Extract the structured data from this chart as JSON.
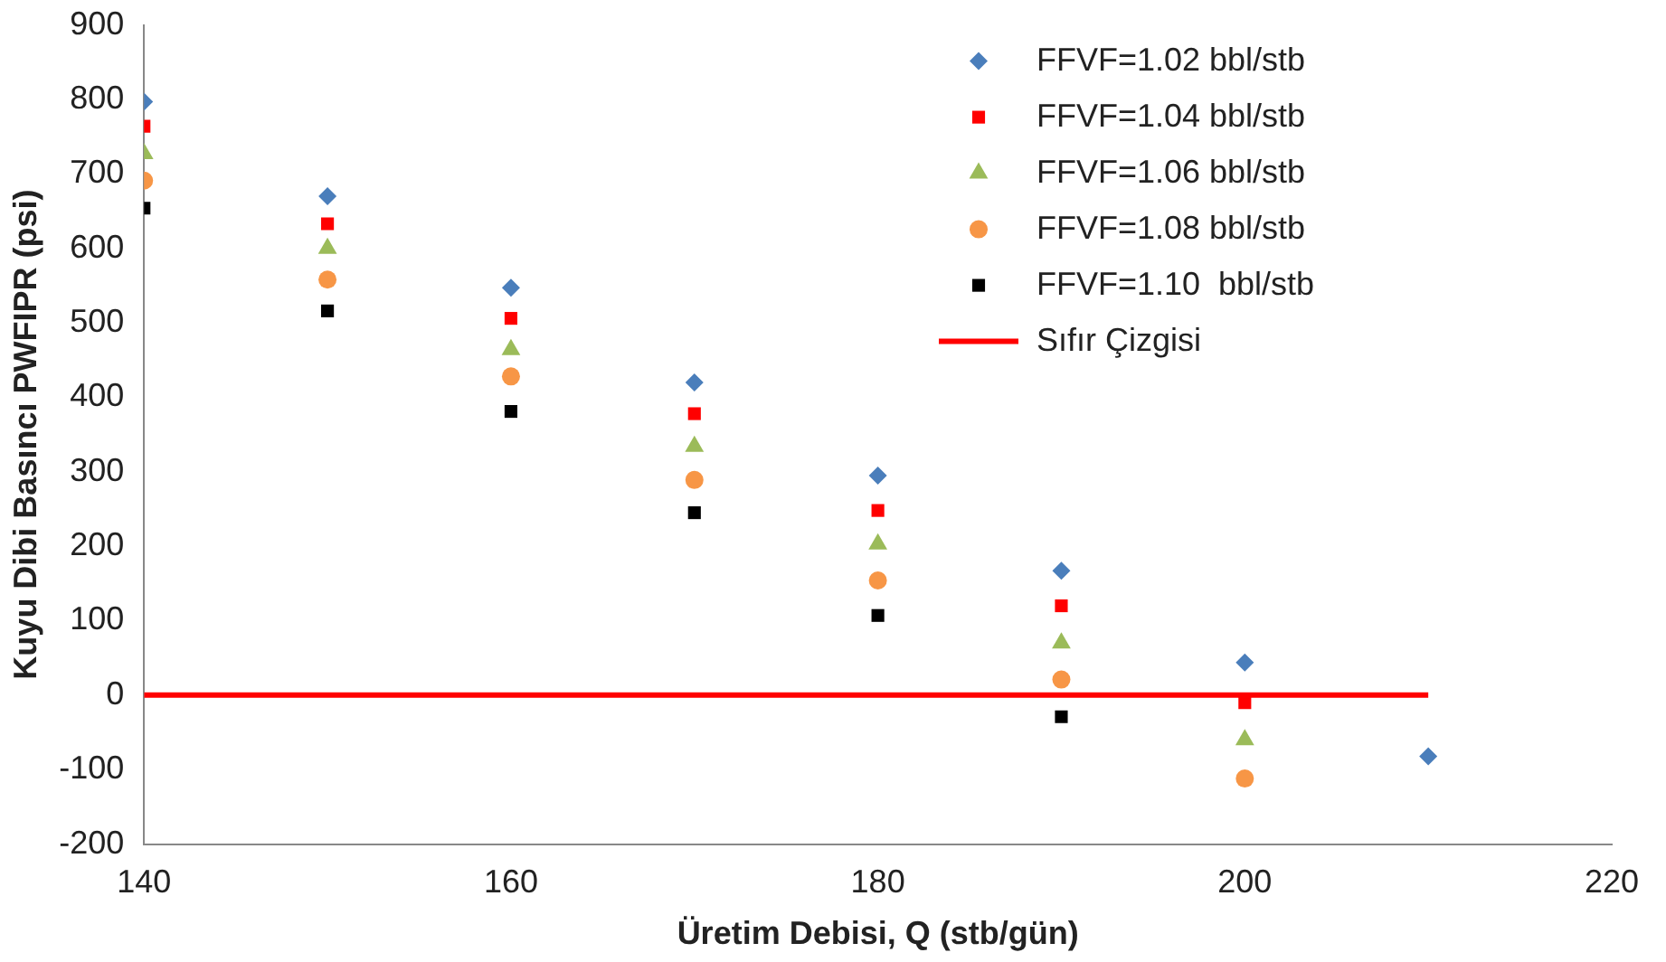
{
  "chart_data": {
    "type": "scatter",
    "xlabel": "Üretim Debisi, Q (stb/gün)",
    "ylabel": "Kuyu Dibi Basıncı PWFIPR (psi)",
    "x": [
      140,
      150,
      160,
      170,
      180,
      190,
      200,
      210
    ],
    "xlim": [
      140,
      220
    ],
    "xticks": [
      140,
      160,
      180,
      200,
      220
    ],
    "ylim": [
      -200,
      900
    ],
    "yticks": [
      -200,
      -100,
      0,
      100,
      200,
      300,
      400,
      500,
      600,
      700,
      800,
      900
    ],
    "grid": false,
    "legend": "top right",
    "series": [
      {
        "name": "FFVF=1.02 bbl/stb",
        "color": "#4a7ebb",
        "marker": "diamond",
        "values": [
          797,
          670,
          547,
          420,
          295,
          167,
          44,
          -82
        ]
      },
      {
        "name": "FFVF=1.04 bbl/stb",
        "color": "#ff0000",
        "marker": "square",
        "values": [
          764,
          633,
          506,
          378,
          248,
          120,
          -10,
          null
        ]
      },
      {
        "name": "FFVF=1.06 bbl/stb",
        "color": "#9bbb59",
        "marker": "triangle",
        "values": [
          727,
          600,
          464,
          334,
          203,
          70,
          -60,
          null
        ]
      },
      {
        "name": "FFVF=1.08 bbl/stb",
        "color": "#f79646",
        "marker": "circle",
        "values": [
          691,
          558,
          428,
          289,
          154,
          21,
          -112,
          null
        ]
      },
      {
        "name": "FFVF=1.10  bbl/stb",
        "color": "#000000",
        "marker": "square",
        "values": [
          654,
          516,
          381,
          245,
          107,
          -29,
          null,
          null
        ]
      },
      {
        "name": "Sıfır Çizgisi",
        "type": "line",
        "color": "#ff0000",
        "marker": "none",
        "line_style": "solid",
        "x": [
          140,
          210
        ],
        "values": [
          0,
          0
        ]
      }
    ]
  }
}
